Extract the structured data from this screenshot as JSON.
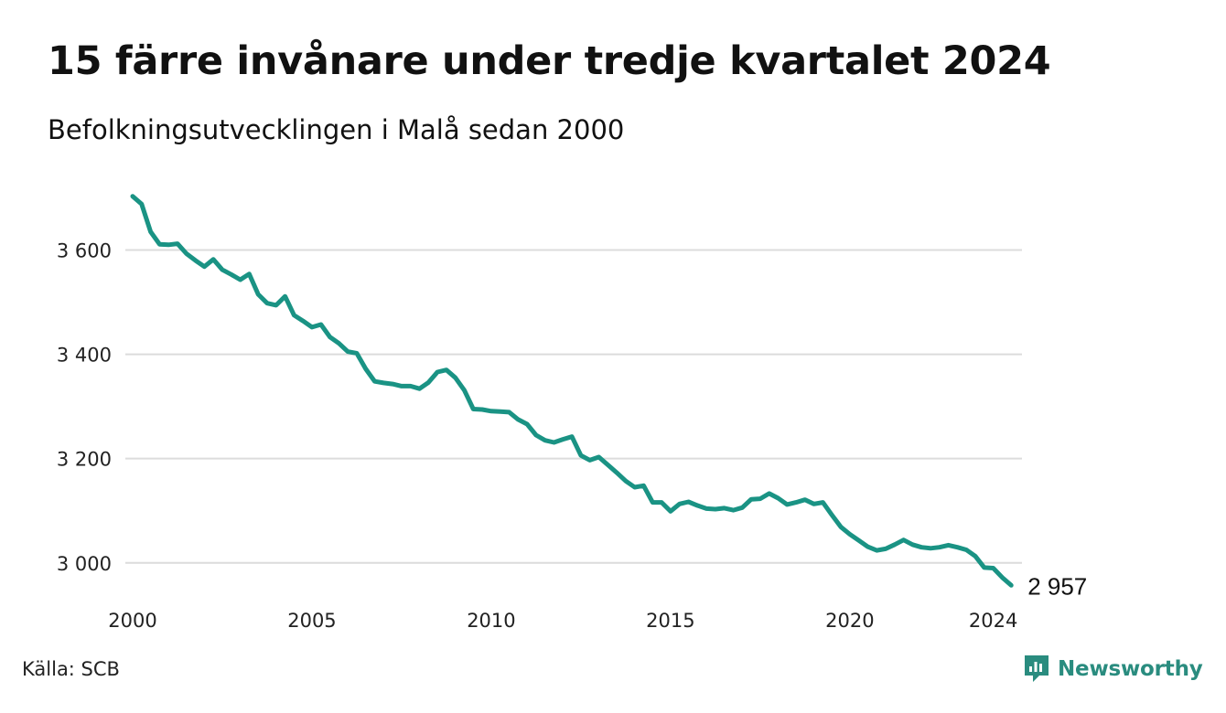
{
  "header": {
    "title": "15 färre invånare under tredje kvartalet 2024",
    "subtitle": "Befolkningsutvecklingen i Malå sedan 2000"
  },
  "footer": {
    "source": "Källa: SCB",
    "brand": "Newsworthy"
  },
  "colors": {
    "line": "#1a9384",
    "grid": "#dcdcdc",
    "brand": "#2a8c7f"
  },
  "chart_data": {
    "type": "line",
    "title": "15 färre invånare under tredje kvartalet 2024",
    "subtitle": "Befolkningsutvecklingen i Malå sedan 2000",
    "xlabel": "",
    "ylabel": "",
    "x_start_year": 2000.0,
    "x_step_years": 0.25,
    "xlim": [
      2000,
      2024.75
    ],
    "ylim": [
      2940,
      3720
    ],
    "yticks": [
      3000,
      3200,
      3400,
      3600
    ],
    "ytick_labels": [
      "3 000",
      "3 200",
      "3 400",
      "3 600"
    ],
    "xticks": [
      2000,
      2005,
      2010,
      2015,
      2020,
      2024
    ],
    "xtick_labels": [
      "2000",
      "2005",
      "2010",
      "2015",
      "2020",
      "2024"
    ],
    "grid": true,
    "legend": "none",
    "end_label": "2 957",
    "series": [
      {
        "values": [
          3703,
          3688,
          3635,
          3611,
          3610,
          3612,
          3593,
          3580,
          3568,
          3582,
          3562,
          3553,
          3543,
          3554,
          3515,
          3498,
          3494,
          3511,
          3475,
          3464,
          3452,
          3457,
          3433,
          3421,
          3405,
          3402,
          3372,
          3348,
          3345,
          3343,
          3339,
          3339,
          3334,
          3346,
          3366,
          3370,
          3355,
          3331,
          3295,
          3294,
          3291,
          3290,
          3289,
          3275,
          3266,
          3245,
          3235,
          3231,
          3237,
          3242,
          3206,
          3197,
          3203,
          3188,
          3173,
          3157,
          3145,
          3148,
          3116,
          3116,
          3099,
          3113,
          3117,
          3110,
          3104,
          3103,
          3105,
          3101,
          3106,
          3122,
          3123,
          3133,
          3124,
          3112,
          3116,
          3121,
          3113,
          3116,
          3092,
          3069,
          3055,
          3043,
          3031,
          3024,
          3027,
          3035,
          3044,
          3035,
          3030,
          3028,
          3030,
          3034,
          3030,
          3025,
          3013,
          2991,
          2990,
          2972,
          2957
        ]
      }
    ]
  }
}
